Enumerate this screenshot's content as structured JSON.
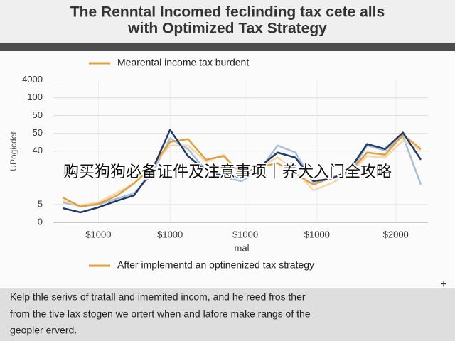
{
  "chart_data": {
    "type": "line",
    "title": [
      "The Renntal Incomed feclinding tax cete alls",
      "with Optimized Tax Strategy"
    ],
    "legend_top": {
      "text": "Mearental income tax burdent",
      "color": "#e0a040"
    },
    "legend_bottom": {
      "text": "After implementd an optinenized tax strategy",
      "color": "#e0a040"
    },
    "y_label": "UPogicdet",
    "x_label": "mal",
    "overlay": "购买狗狗必备证件及注意事项｜养犬入门全攻略",
    "caption": [
      "Kelp thle serivs of tratall and imemited incom, and he reed fros ther",
      "from the tive lax stogen we ortert when and lafore make rangs of the",
      "geopler erverd."
    ],
    "corner_icon": "+",
    "x": [
      0,
      5,
      10,
      15,
      20,
      25,
      30,
      35,
      40,
      45,
      50,
      55,
      60,
      65,
      70,
      75,
      80,
      85,
      90,
      95,
      100
    ],
    "xlim": [
      0,
      100
    ],
    "xticks": [
      {
        "value": 10,
        "label": "$1000"
      },
      {
        "value": 30,
        "label": "$1000"
      },
      {
        "value": 51,
        "label": "$1000"
      },
      {
        "value": 71,
        "label": "$1000"
      },
      {
        "value": 93,
        "label": "$2000"
      }
    ],
    "ylim": [
      0,
      80
    ],
    "yticks": [
      0,
      {
        "value": 10,
        "label": "5"
      },
      40,
      50,
      {
        "value": 60,
        "label": "50"
      },
      {
        "value": 70,
        "label": "100"
      },
      {
        "value": 80,
        "label": "4000"
      }
    ],
    "grid": true,
    "series": [
      {
        "color": "#a9bed2",
        "values": [
          11.2,
          9.2,
          10,
          13.2,
          16.4,
          27.2,
          47.2,
          41.2,
          29.2,
          25.2,
          23.2,
          29.2,
          43.2,
          39.2,
          22,
          25.2,
          27.2,
          43.2,
          40.4,
          48.4,
          21.2
        ]
      },
      {
        "color": "#f3d7b0",
        "values": [
          12,
          9.6,
          11.2,
          16.4,
          22,
          31.2,
          43.2,
          43.2,
          34,
          38,
          26,
          31.2,
          36.4,
          29.2,
          18,
          22,
          27.2,
          37.2,
          36.4,
          46,
          40.4
        ]
      },
      {
        "color": "#e0a040",
        "values": [
          14,
          8.8,
          10.4,
          14.8,
          22,
          31.2,
          45.2,
          46.8,
          35.2,
          37.2,
          27.2,
          31.2,
          33.2,
          27.2,
          21.2,
          25.2,
          28,
          39.2,
          38,
          49.2,
          41.2
        ]
      },
      {
        "color": "#1f3a68",
        "values": [
          8,
          5.6,
          8.4,
          12,
          15.2,
          29.2,
          52,
          37.2,
          29.2,
          26,
          25.2,
          31.2,
          39.2,
          36.4,
          23.2,
          24.4,
          29.2,
          44,
          41.2,
          50.4,
          35.2
        ]
      }
    ]
  }
}
